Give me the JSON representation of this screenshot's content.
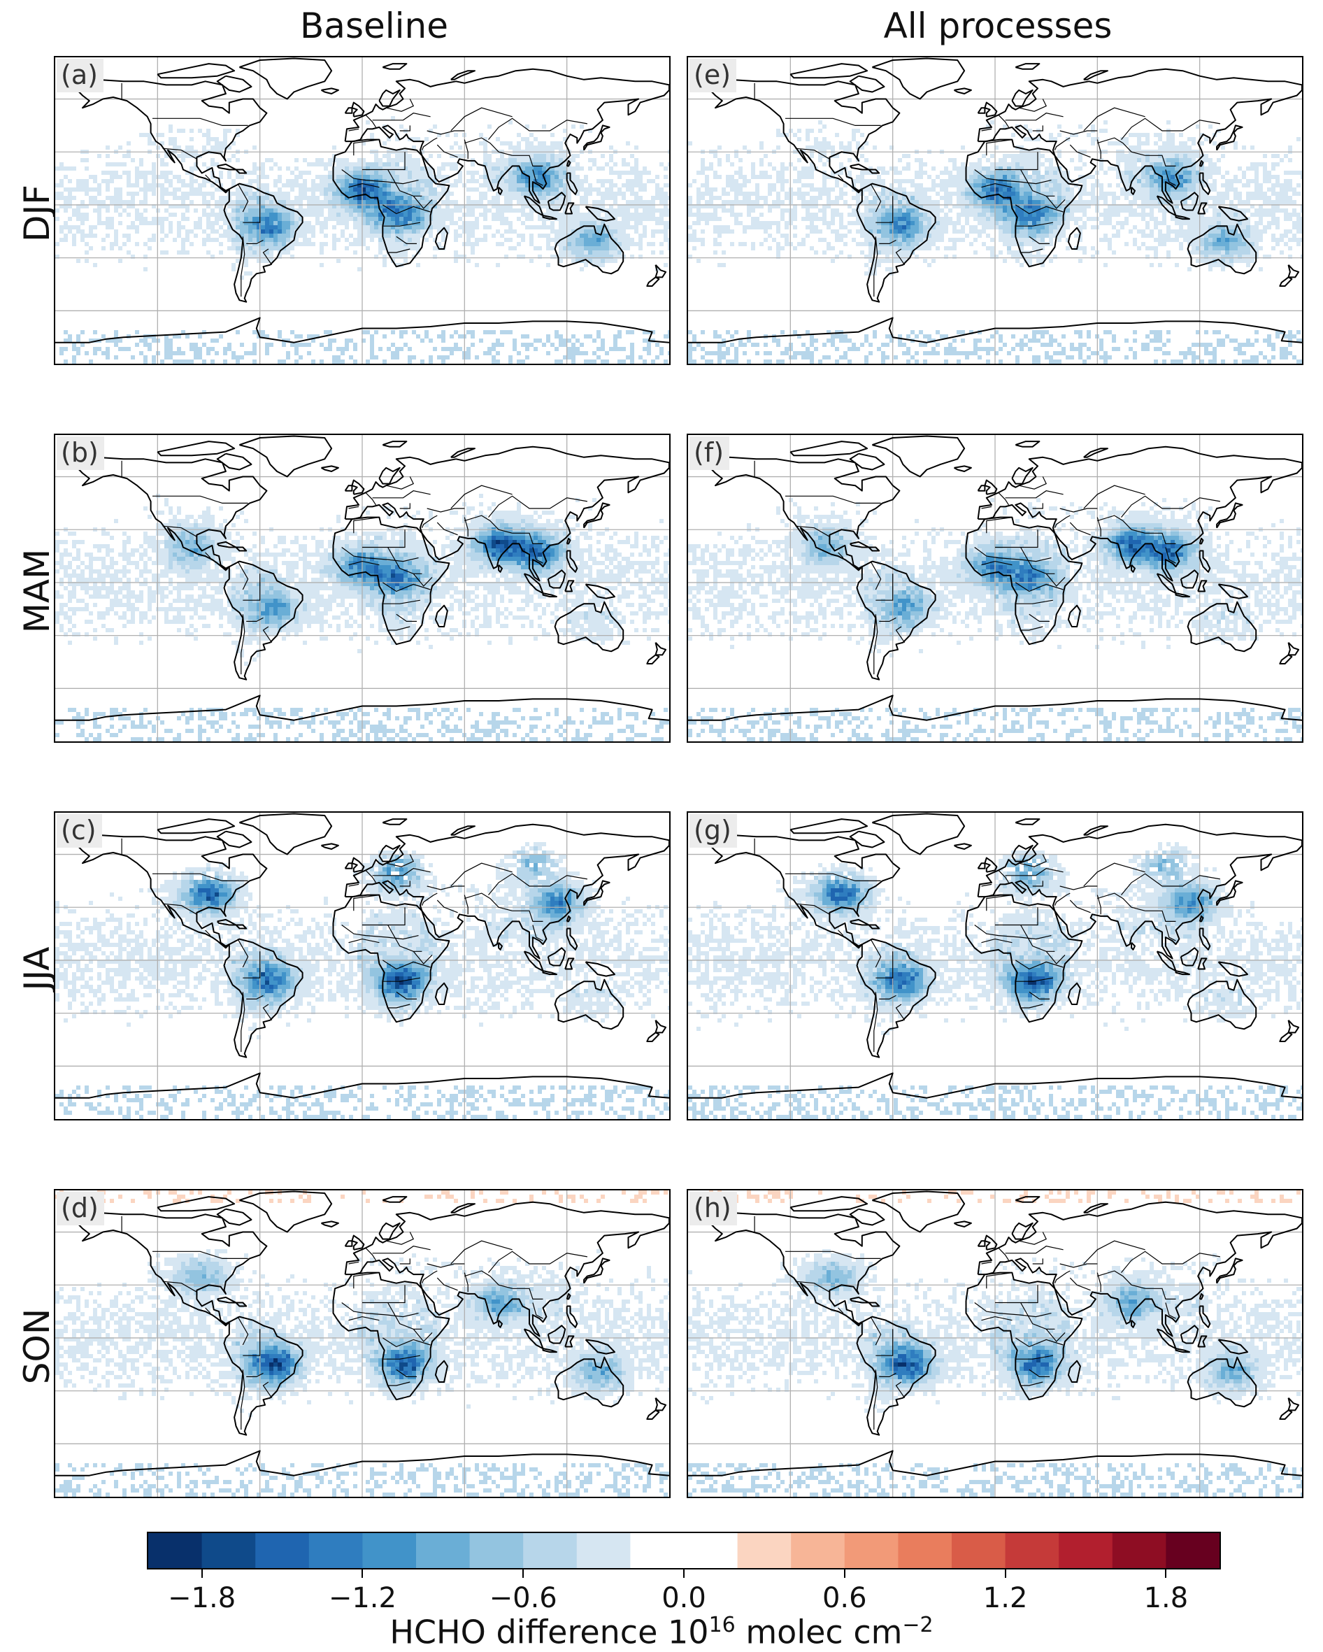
{
  "columns": [
    "Baseline",
    "All processes"
  ],
  "rows": [
    "DJF",
    "MAM",
    "JJA",
    "SON"
  ],
  "panel_tags": [
    [
      "(a)",
      "(e)"
    ],
    [
      "(b)",
      "(f)"
    ],
    [
      "(c)",
      "(g)"
    ],
    [
      "(d)",
      "(h)"
    ]
  ],
  "colors": {
    "negative": [
      "#08306b",
      "#0f4a8a",
      "#1f65b0",
      "#2f7dbf",
      "#4193c9",
      "#6aaed6",
      "#93c4e0",
      "#b7d6ea",
      "#d6e6f2"
    ],
    "zero": "#ffffff",
    "positive": [
      "#fbd5c1",
      "#f7b597",
      "#f29a78",
      "#e97d5d",
      "#d95c48",
      "#c53a39",
      "#b21f2e",
      "#8e0d23",
      "#67001f"
    ],
    "coastline": "#000000",
    "gridline": "#b0b0b0"
  },
  "chart_data": {
    "type": "heatmap",
    "colorbar": {
      "range": [
        -2.0,
        2.0
      ],
      "step": 0.2,
      "ticks": [
        "−1.8",
        "−1.2",
        "−0.6",
        "0.0",
        "0.6",
        "1.2",
        "1.8"
      ],
      "tick_values": [
        -1.8,
        -1.2,
        -0.6,
        0.0,
        0.6,
        1.2,
        1.8
      ],
      "label_main": "HCHO difference 10",
      "label_exp": "16",
      "label_unit": " molec cm",
      "label_unit_exp": "−2"
    },
    "hotspots": {
      "DJF": [
        {
          "region": "West Africa",
          "lon": 0,
          "lat": 8,
          "value": -1.2
        },
        {
          "region": "Central Africa",
          "lon": 22,
          "lat": -5,
          "value": -1.0
        },
        {
          "region": "South America",
          "lon": -55,
          "lat": -12,
          "value": -0.9
        },
        {
          "region": "Southeast Asia",
          "lon": 103,
          "lat": 15,
          "value": -0.9
        },
        {
          "region": "Australia",
          "lon": 135,
          "lat": -20,
          "value": -0.6
        }
      ],
      "MAM": [
        {
          "region": "India",
          "lon": 80,
          "lat": 22,
          "value": -1.2
        },
        {
          "region": "Southeast Asia",
          "lon": 102,
          "lat": 17,
          "value": -1.1
        },
        {
          "region": "Central Africa",
          "lon": 20,
          "lat": 3,
          "value": -0.9
        },
        {
          "region": "West Africa",
          "lon": -2,
          "lat": 9,
          "value": -0.9
        },
        {
          "region": "South America",
          "lon": -52,
          "lat": -15,
          "value": -0.7
        },
        {
          "region": "Mexico",
          "lon": -100,
          "lat": 20,
          "value": -0.7
        }
      ],
      "JJA": [
        {
          "region": "North America",
          "lon": -90,
          "lat": 38,
          "value": -1.3
        },
        {
          "region": "Europe",
          "lon": 20,
          "lat": 50,
          "value": -0.9
        },
        {
          "region": "East China",
          "lon": 115,
          "lat": 33,
          "value": -1.0
        },
        {
          "region": "Southern Africa",
          "lon": 23,
          "lat": -12,
          "value": -1.3
        },
        {
          "region": "Brazil",
          "lon": -55,
          "lat": -12,
          "value": -1.1
        },
        {
          "region": "Siberia",
          "lon": 100,
          "lat": 55,
          "value": -0.7
        }
      ],
      "SON": [
        {
          "region": "Brazil",
          "lon": -52,
          "lat": -15,
          "value": -1.4
        },
        {
          "region": "Southern Africa",
          "lon": 25,
          "lat": -15,
          "value": -1.2
        },
        {
          "region": "India",
          "lon": 80,
          "lat": 20,
          "value": -0.7
        },
        {
          "region": "Australia",
          "lon": 140,
          "lat": -18,
          "value": -0.6
        },
        {
          "region": "North America",
          "lon": -95,
          "lat": 35,
          "value": -0.6
        }
      ]
    }
  }
}
